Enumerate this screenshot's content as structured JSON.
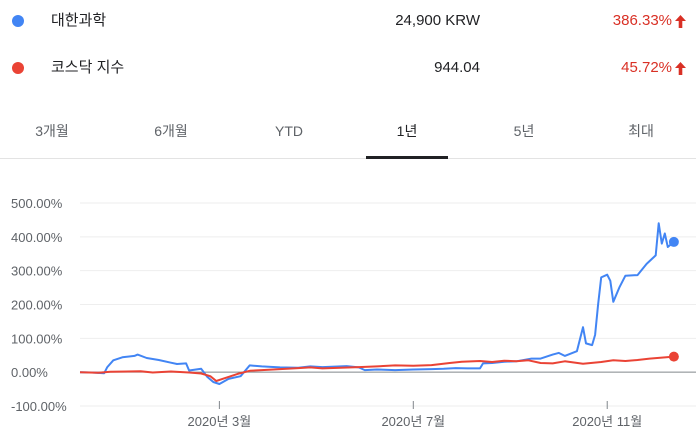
{
  "securities": [
    {
      "name": "대한과학",
      "price": "24,900 KRW",
      "change": "386.33%",
      "color": "#4285f4"
    },
    {
      "name": "코스닥 지수",
      "price": "944.04",
      "change": "45.72%",
      "color": "#ea4335"
    }
  ],
  "change_color": "#d93025",
  "tabs": [
    {
      "label": "3개월"
    },
    {
      "label": "6개월"
    },
    {
      "label": "YTD"
    },
    {
      "label": "1년",
      "active": true
    },
    {
      "label": "5년"
    },
    {
      "label": "최대"
    }
  ],
  "chart_data": {
    "type": "line",
    "ylim": [
      -100,
      500
    ],
    "y_ticks": [
      "500.00%",
      "400.00%",
      "300.00%",
      "200.00%",
      "100.00%",
      "0.00%",
      "-100.00%"
    ],
    "y_tick_values": [
      500,
      400,
      300,
      200,
      100,
      0,
      -100
    ],
    "x_ticks": [
      {
        "label": "2020년 3월",
        "t": 0.23
      },
      {
        "label": "2020년 7월",
        "t": 0.55
      },
      {
        "label": "2020년 11월",
        "t": 0.87
      }
    ],
    "series": [
      {
        "name": "대한과학",
        "color": "#4285f4",
        "points": [
          [
            0,
            0
          ],
          [
            0.02,
            -1
          ],
          [
            0.04,
            -3
          ],
          [
            0.045,
            15
          ],
          [
            0.055,
            35
          ],
          [
            0.07,
            44
          ],
          [
            0.09,
            48
          ],
          [
            0.095,
            52
          ],
          [
            0.11,
            42
          ],
          [
            0.13,
            36
          ],
          [
            0.15,
            28
          ],
          [
            0.16,
            24
          ],
          [
            0.175,
            26
          ],
          [
            0.18,
            5
          ],
          [
            0.2,
            10
          ],
          [
            0.21,
            -14
          ],
          [
            0.22,
            -29
          ],
          [
            0.23,
            -35
          ],
          [
            0.245,
            -20
          ],
          [
            0.265,
            -12
          ],
          [
            0.28,
            20
          ],
          [
            0.3,
            17
          ],
          [
            0.33,
            14
          ],
          [
            0.36,
            13
          ],
          [
            0.38,
            17
          ],
          [
            0.4,
            15
          ],
          [
            0.44,
            18
          ],
          [
            0.46,
            14
          ],
          [
            0.47,
            6
          ],
          [
            0.49,
            8
          ],
          [
            0.52,
            6
          ],
          [
            0.55,
            8
          ],
          [
            0.58,
            9
          ],
          [
            0.6,
            10
          ],
          [
            0.62,
            12
          ],
          [
            0.64,
            11
          ],
          [
            0.66,
            11
          ],
          [
            0.665,
            26
          ],
          [
            0.68,
            27
          ],
          [
            0.7,
            31
          ],
          [
            0.72,
            32
          ],
          [
            0.745,
            40
          ],
          [
            0.76,
            40
          ],
          [
            0.78,
            52
          ],
          [
            0.79,
            57
          ],
          [
            0.8,
            48
          ],
          [
            0.82,
            62
          ],
          [
            0.83,
            133
          ],
          [
            0.835,
            85
          ],
          [
            0.845,
            80
          ],
          [
            0.85,
            110
          ],
          [
            0.855,
            200
          ],
          [
            0.86,
            280
          ],
          [
            0.87,
            288
          ],
          [
            0.875,
            270
          ],
          [
            0.88,
            208
          ],
          [
            0.89,
            250
          ],
          [
            0.9,
            285
          ],
          [
            0.92,
            287
          ],
          [
            0.935,
            320
          ],
          [
            0.95,
            345
          ],
          [
            0.955,
            440
          ],
          [
            0.96,
            380
          ],
          [
            0.965,
            410
          ],
          [
            0.97,
            370
          ],
          [
            0.98,
            385
          ]
        ]
      },
      {
        "name": "코스닥 지수",
        "color": "#ea4335",
        "points": [
          [
            0,
            0
          ],
          [
            0.03,
            -2
          ],
          [
            0.05,
            1
          ],
          [
            0.1,
            3
          ],
          [
            0.12,
            -1
          ],
          [
            0.15,
            2
          ],
          [
            0.18,
            -1
          ],
          [
            0.2,
            -4
          ],
          [
            0.215,
            -12
          ],
          [
            0.225,
            -26
          ],
          [
            0.235,
            -20
          ],
          [
            0.245,
            -14
          ],
          [
            0.26,
            -5
          ],
          [
            0.28,
            4
          ],
          [
            0.3,
            6
          ],
          [
            0.33,
            9
          ],
          [
            0.36,
            12
          ],
          [
            0.38,
            14
          ],
          [
            0.4,
            11
          ],
          [
            0.43,
            13
          ],
          [
            0.46,
            15
          ],
          [
            0.49,
            17
          ],
          [
            0.52,
            20
          ],
          [
            0.55,
            19
          ],
          [
            0.58,
            21
          ],
          [
            0.61,
            27
          ],
          [
            0.63,
            31
          ],
          [
            0.66,
            33
          ],
          [
            0.68,
            30
          ],
          [
            0.7,
            34
          ],
          [
            0.72,
            32
          ],
          [
            0.74,
            35
          ],
          [
            0.76,
            27
          ],
          [
            0.78,
            26
          ],
          [
            0.8,
            32
          ],
          [
            0.83,
            25
          ],
          [
            0.86,
            30
          ],
          [
            0.88,
            35
          ],
          [
            0.9,
            33
          ],
          [
            0.92,
            36
          ],
          [
            0.94,
            40
          ],
          [
            0.96,
            43
          ],
          [
            0.98,
            46
          ]
        ]
      }
    ]
  }
}
